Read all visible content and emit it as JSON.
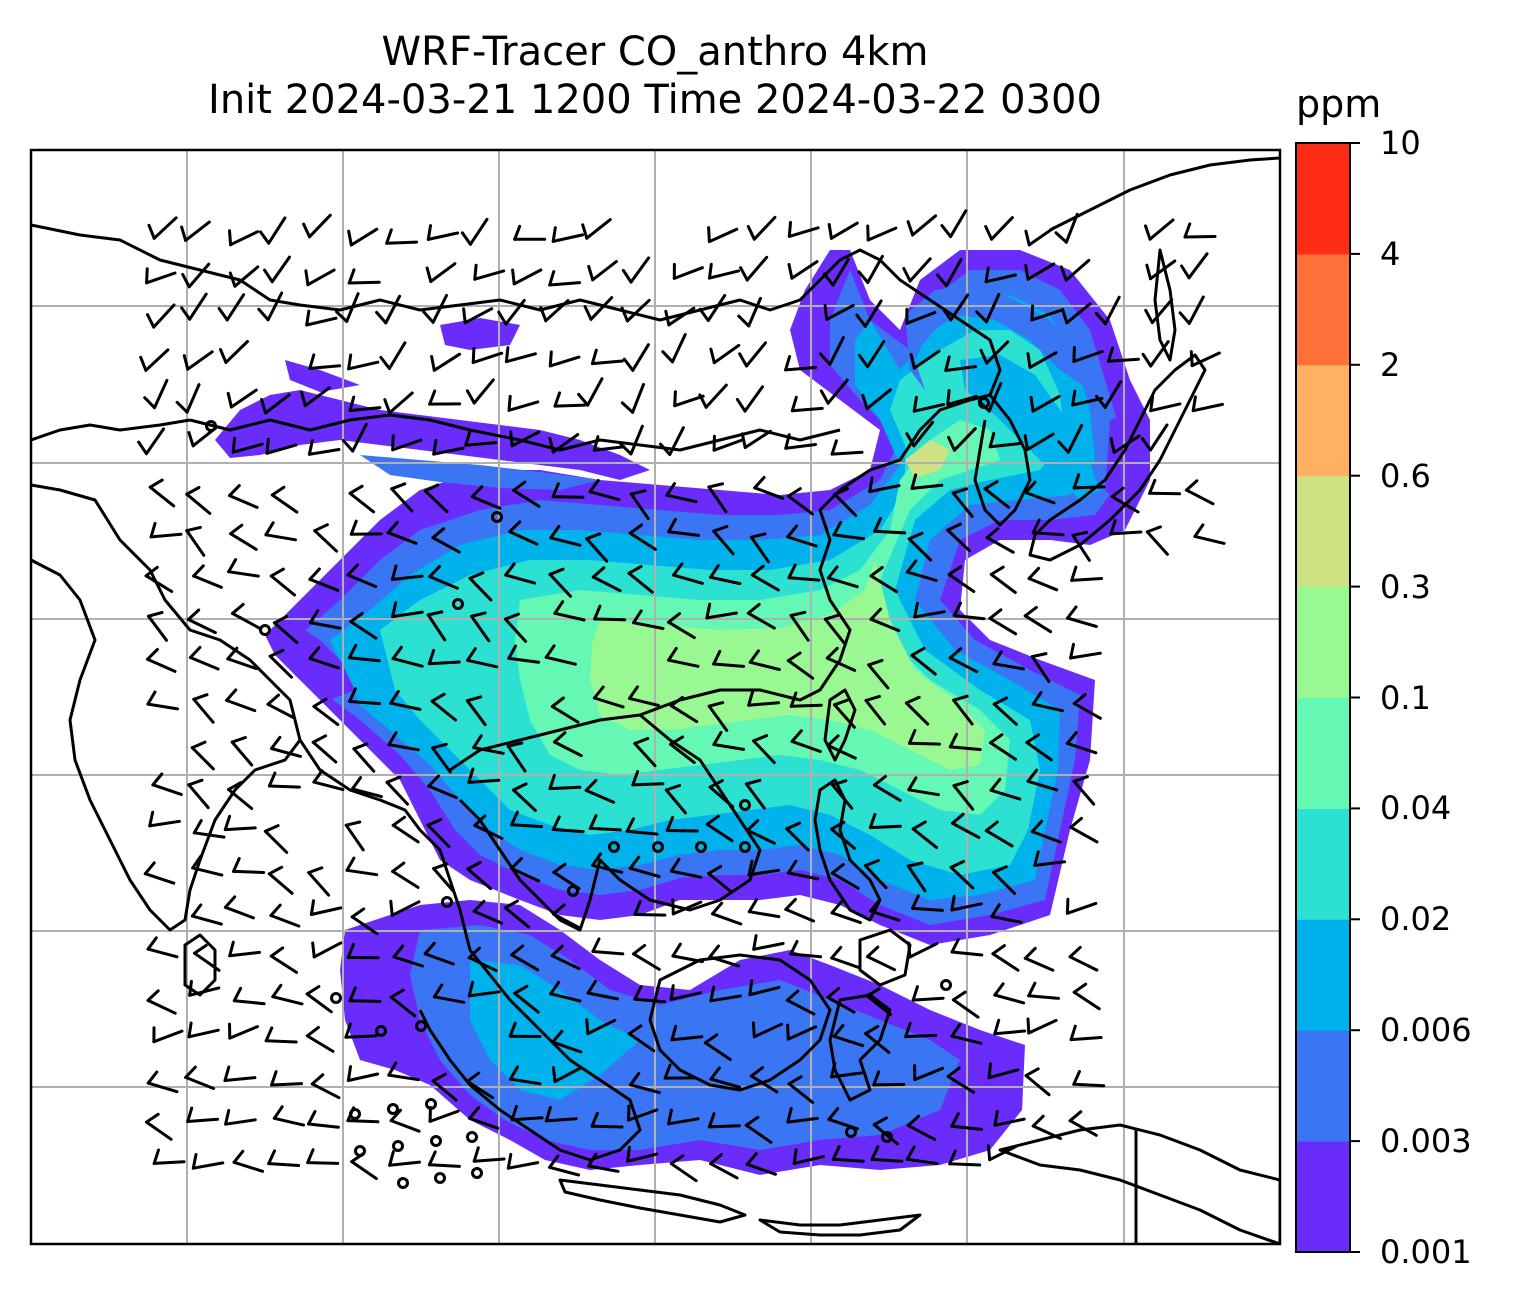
{
  "title": {
    "line1": "WRF-Tracer CO_anthro 4km",
    "line2": "Init 2024-03-21 1200 Time 2024-03-22 0300"
  },
  "colorbar": {
    "unit": "ppm",
    "levels": [
      "0.001",
      "0.003",
      "0.006",
      "0.02",
      "0.04",
      "0.1",
      "0.3",
      "0.6",
      "2",
      "4",
      "10"
    ],
    "colors": [
      "#6a2cfb",
      "#3a75f4",
      "#00b2eb",
      "#2ce0d2",
      "#64f8b4",
      "#9af893",
      "#cde283",
      "#ffb060",
      "#ff703b",
      "#ff2c16"
    ]
  },
  "map": {
    "grid": "on",
    "coastlines": "black",
    "wind_barbs": "black",
    "calm_markers": "circles"
  }
}
